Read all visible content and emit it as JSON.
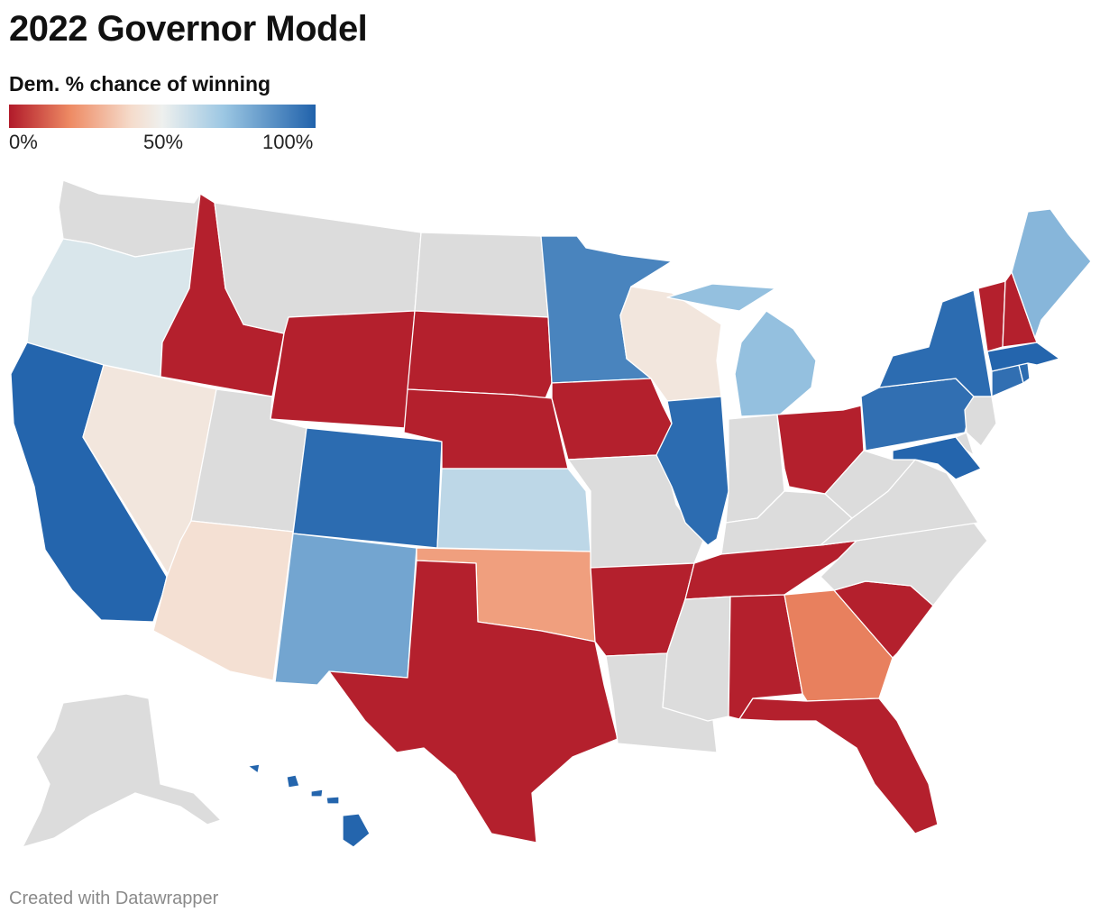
{
  "header": {
    "title": "2022 Governor Model",
    "legend_title": "Dem. % chance of winning",
    "ticks": [
      "0%",
      "50%",
      "100%"
    ]
  },
  "colors": {
    "no_race": "#dcdcdc",
    "scale": [
      "#b11a2a",
      "#ee8b64",
      "#f5dccc",
      "#eef0ee",
      "#9cc7e3",
      "#2062ab"
    ]
  },
  "states": [
    {
      "id": "WA",
      "value": null
    },
    {
      "id": "OR",
      "value": 0.55
    },
    {
      "id": "CA",
      "value": 0.99
    },
    {
      "id": "NV",
      "value": 0.45
    },
    {
      "id": "ID",
      "value": 0.01
    },
    {
      "id": "MT",
      "value": null
    },
    {
      "id": "WY",
      "value": 0.01
    },
    {
      "id": "UT",
      "value": null
    },
    {
      "id": "AZ",
      "value": 0.42
    },
    {
      "id": "CO",
      "value": 0.97
    },
    {
      "id": "NM",
      "value": 0.8
    },
    {
      "id": "ND",
      "value": null
    },
    {
      "id": "SD",
      "value": 0.01
    },
    {
      "id": "NE",
      "value": 0.01
    },
    {
      "id": "KS",
      "value": 0.62
    },
    {
      "id": "OK",
      "value": 0.25
    },
    {
      "id": "TX",
      "value": 0.01
    },
    {
      "id": "MN",
      "value": 0.9
    },
    {
      "id": "IA",
      "value": 0.01
    },
    {
      "id": "MO",
      "value": null
    },
    {
      "id": "AR",
      "value": 0.01
    },
    {
      "id": "LA",
      "value": null
    },
    {
      "id": "WI",
      "value": 0.45
    },
    {
      "id": "IL",
      "value": 0.97
    },
    {
      "id": "MI",
      "value": 0.72
    },
    {
      "id": "IN",
      "value": null
    },
    {
      "id": "OH",
      "value": 0.01
    },
    {
      "id": "KY",
      "value": null
    },
    {
      "id": "TN",
      "value": 0.01
    },
    {
      "id": "MS",
      "value": null
    },
    {
      "id": "AL",
      "value": 0.01
    },
    {
      "id": "GA",
      "value": 0.18
    },
    {
      "id": "FL",
      "value": 0.01
    },
    {
      "id": "SC",
      "value": 0.01
    },
    {
      "id": "NC",
      "value": null
    },
    {
      "id": "VA",
      "value": null
    },
    {
      "id": "WV",
      "value": null
    },
    {
      "id": "PA",
      "value": 0.96
    },
    {
      "id": "NY",
      "value": 0.97
    },
    {
      "id": "MD",
      "value": 0.99
    },
    {
      "id": "DE",
      "value": null
    },
    {
      "id": "NJ",
      "value": null
    },
    {
      "id": "CT",
      "value": 0.96
    },
    {
      "id": "RI",
      "value": 0.97
    },
    {
      "id": "MA",
      "value": 0.99
    },
    {
      "id": "VT",
      "value": 0.01
    },
    {
      "id": "NH",
      "value": 0.01
    },
    {
      "id": "ME",
      "value": 0.75
    },
    {
      "id": "AK",
      "value": null
    },
    {
      "id": "HI",
      "value": 0.99
    }
  ],
  "footer": {
    "credit": "Created with Datawrapper"
  }
}
